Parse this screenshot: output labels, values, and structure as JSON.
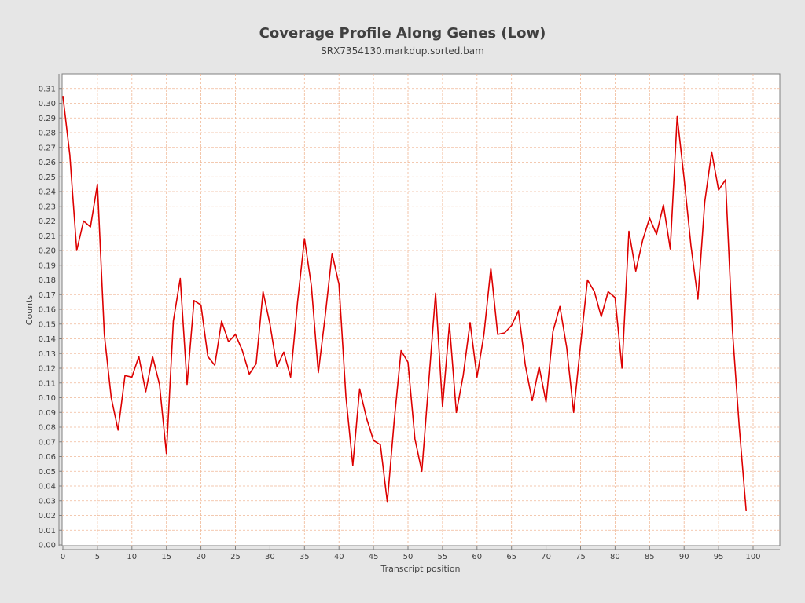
{
  "chart_data": {
    "type": "line",
    "title": "Coverage Profile Along Genes (Low)",
    "subtitle": "SRX7354130.markdup.sorted.bam",
    "xlabel": "Transcript position",
    "ylabel": "Counts",
    "xlim": [
      0,
      104
    ],
    "ylim": [
      0,
      0.32
    ],
    "grid": true,
    "x_ticks": [
      0,
      5,
      10,
      15,
      20,
      25,
      30,
      35,
      40,
      45,
      50,
      55,
      60,
      65,
      70,
      75,
      80,
      85,
      90,
      95,
      100
    ],
    "y_ticks": [
      "0.00",
      "0.01",
      "0.02",
      "0.03",
      "0.04",
      "0.05",
      "0.06",
      "0.07",
      "0.08",
      "0.09",
      "0.10",
      "0.11",
      "0.12",
      "0.13",
      "0.14",
      "0.15",
      "0.16",
      "0.17",
      "0.18",
      "0.19",
      "0.20",
      "0.21",
      "0.22",
      "0.23",
      "0.24",
      "0.25",
      "0.26",
      "0.27",
      "0.28",
      "0.29",
      "0.30",
      "0.31"
    ],
    "colors": {
      "line": "#dd0000",
      "background": "#ffffff",
      "grid": "#f0b896"
    },
    "series": [
      {
        "x": [
          0,
          1,
          2,
          3,
          4,
          5,
          6,
          7,
          8,
          9,
          10,
          11,
          12,
          13,
          14,
          15,
          16,
          17,
          18,
          19,
          20,
          21,
          22,
          23,
          24,
          25,
          26,
          27,
          28,
          29,
          30,
          31,
          32,
          33,
          34,
          35,
          36,
          37,
          38,
          39,
          40,
          41,
          42,
          43,
          44,
          45,
          46,
          47,
          48,
          49,
          50,
          51,
          52,
          53,
          54,
          55,
          56,
          57,
          58,
          59,
          60,
          61,
          62,
          63,
          64,
          65,
          66,
          67,
          68,
          69,
          70,
          71,
          72,
          73,
          74,
          75,
          76,
          77,
          78,
          79,
          80,
          81,
          82,
          83,
          84,
          85,
          86,
          87,
          88,
          89,
          90,
          91,
          92,
          93,
          94,
          95,
          96,
          97,
          98,
          99
        ],
        "values": [
          0.305,
          0.265,
          0.2,
          0.22,
          0.216,
          0.245,
          0.143,
          0.1,
          0.078,
          0.115,
          0.114,
          0.128,
          0.104,
          0.128,
          0.109,
          0.062,
          0.152,
          0.181,
          0.109,
          0.166,
          0.163,
          0.128,
          0.122,
          0.152,
          0.138,
          0.143,
          0.132,
          0.116,
          0.123,
          0.172,
          0.15,
          0.121,
          0.131,
          0.114,
          0.165,
          0.208,
          0.176,
          0.117,
          0.155,
          0.198,
          0.177,
          0.101,
          0.054,
          0.106,
          0.086,
          0.071,
          0.068,
          0.029,
          0.084,
          0.132,
          0.124,
          0.072,
          0.05,
          0.11,
          0.171,
          0.094,
          0.15,
          0.09,
          0.115,
          0.151,
          0.114,
          0.143,
          0.188,
          0.143,
          0.144,
          0.149,
          0.159,
          0.122,
          0.098,
          0.121,
          0.097,
          0.145,
          0.162,
          0.134,
          0.09,
          0.136,
          0.18,
          0.172,
          0.155,
          0.172,
          0.168,
          0.12,
          0.213,
          0.186,
          0.207,
          0.222,
          0.211,
          0.231,
          0.201,
          0.291,
          0.249,
          0.203,
          0.167,
          0.233,
          0.267,
          0.241,
          0.248,
          0.146,
          0.08,
          0.023
        ]
      }
    ]
  }
}
